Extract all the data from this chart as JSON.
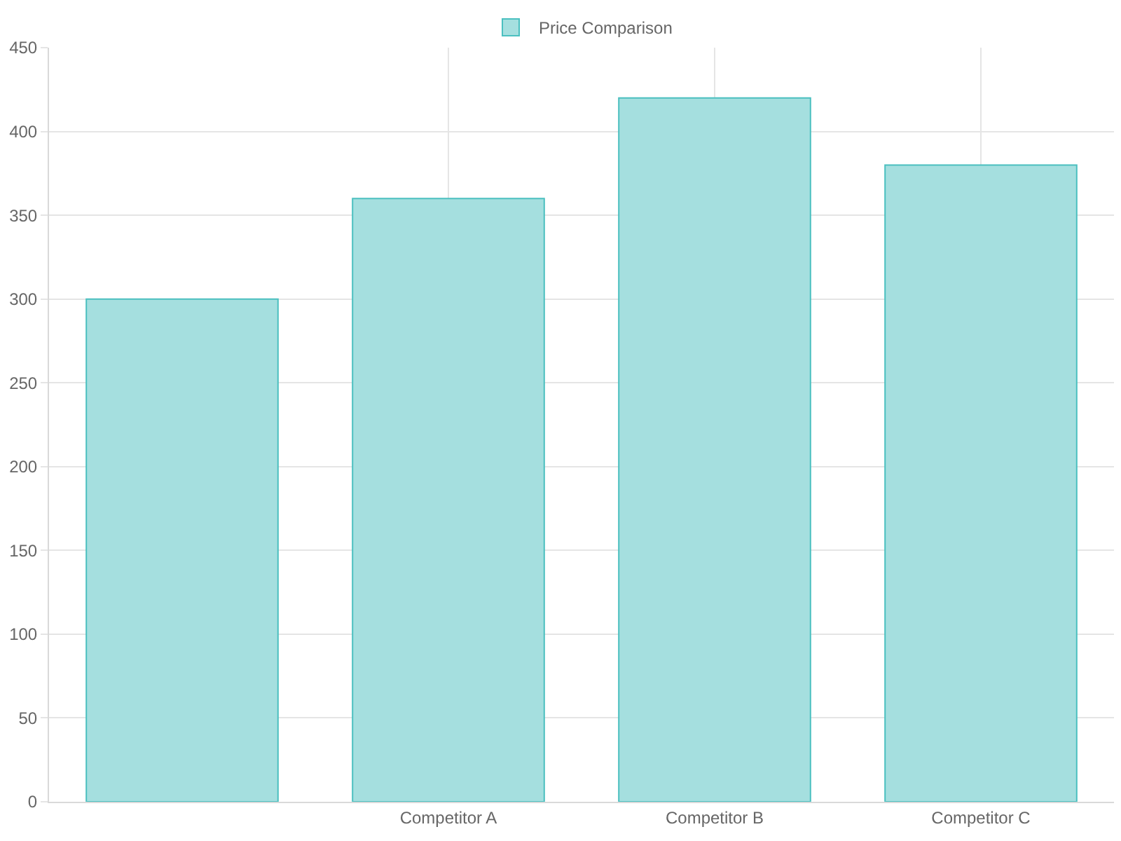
{
  "chart_data": {
    "type": "bar",
    "categories": [
      null,
      "Competitor A",
      "Competitor B",
      "Competitor C"
    ],
    "series": [
      {
        "name": "Price Comparison",
        "color": "#a5dfdf",
        "values": [
          300,
          360,
          420,
          380
        ]
      }
    ],
    "ylim": [
      0,
      450
    ],
    "yticks": [
      0,
      50,
      100,
      150,
      200,
      250,
      300,
      350,
      400,
      450
    ],
    "grid": true,
    "legend": "top"
  }
}
